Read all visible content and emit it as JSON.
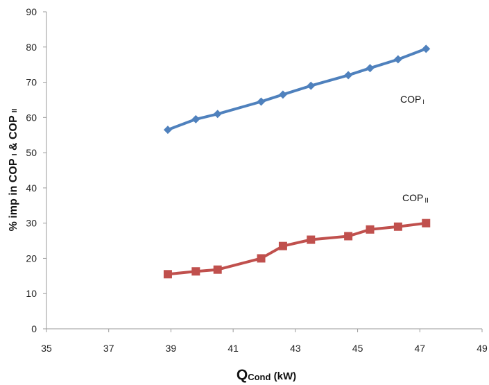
{
  "chart_data": {
    "type": "line",
    "title": "",
    "xlabel": {
      "main": "Q",
      "sub": "Cond",
      "unit": " (kW)"
    },
    "ylabel": {
      "part1": "% imp in COP ",
      "sub1": "I",
      "part2": " & COP ",
      "sub2": "II"
    },
    "xlim": [
      35,
      49
    ],
    "ylim": [
      0,
      90
    ],
    "xticks": [
      35,
      37,
      39,
      41,
      43,
      45,
      47,
      49
    ],
    "yticks": [
      0,
      10,
      20,
      30,
      40,
      50,
      60,
      70,
      80,
      90
    ],
    "grid": false,
    "legend": "none",
    "series": [
      {
        "name": "COP",
        "name_sub": "I",
        "color": "#4f81bd",
        "marker": "diamond",
        "x": [
          38.9,
          39.8,
          40.5,
          41.9,
          42.6,
          43.5,
          44.7,
          45.4,
          46.3,
          47.2
        ],
        "y": [
          56.5,
          59.5,
          61,
          64.5,
          66.5,
          69,
          72,
          74,
          76.5,
          79.5
        ]
      },
      {
        "name": "COP",
        "name_sub": "II",
        "color": "#c0504d",
        "marker": "square",
        "x": [
          38.9,
          39.8,
          40.5,
          41.9,
          42.6,
          43.5,
          44.7,
          45.4,
          46.3,
          47.2
        ],
        "y": [
          15.5,
          16.3,
          16.8,
          20,
          23.5,
          25.3,
          26.3,
          28.2,
          29,
          30
        ]
      }
    ]
  }
}
